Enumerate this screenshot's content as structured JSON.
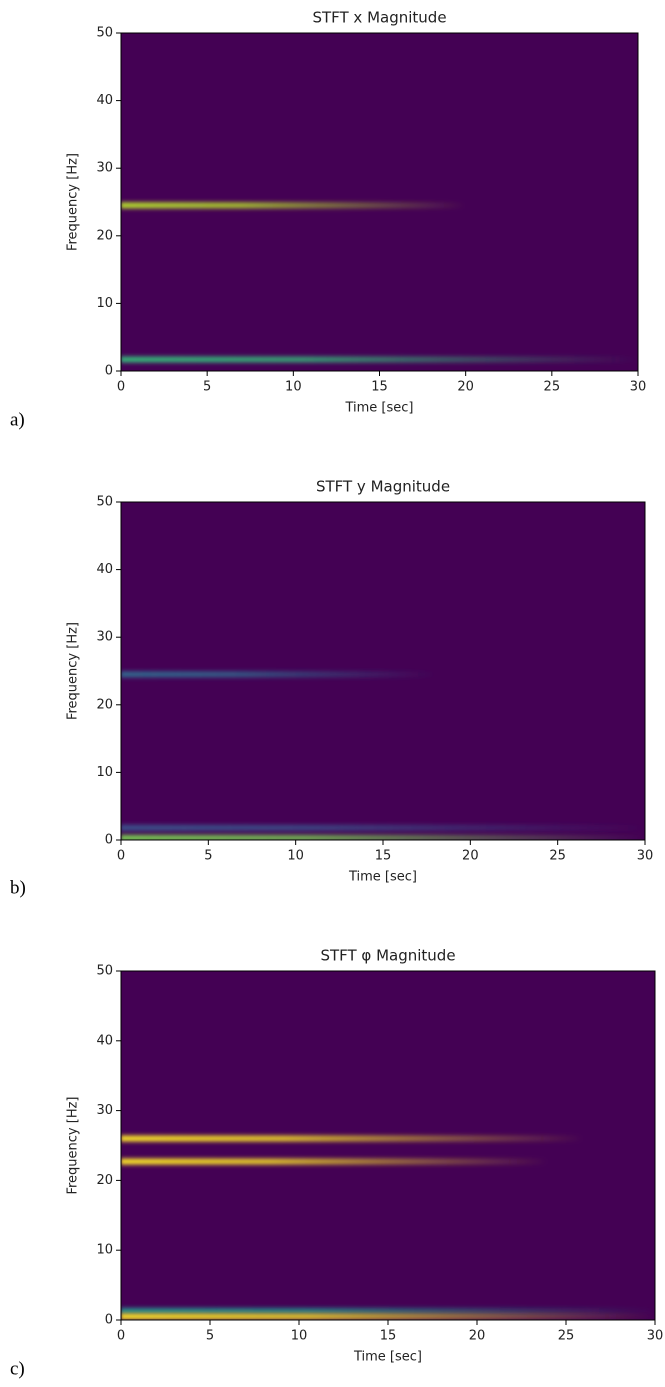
{
  "chart_data": [
    {
      "type": "spectrogram",
      "title": "STFT x Magnitude",
      "label": "a)",
      "xlabel": "Time [sec]",
      "ylabel": "Frequency [Hz]",
      "xlim": [
        0,
        30
      ],
      "ylim": [
        0,
        50
      ],
      "xticks": [
        0,
        5,
        10,
        15,
        20,
        25,
        30
      ],
      "yticks": [
        0,
        10,
        20,
        30,
        40,
        50
      ],
      "background": "#440154",
      "bands": [
        {
          "frequency": 24.5,
          "time": [
            0,
            20
          ],
          "color": "#b5de2b"
        },
        {
          "frequency": 1.7,
          "time": [
            0,
            30
          ],
          "color": "#35b779"
        }
      ]
    },
    {
      "type": "spectrogram",
      "title": "STFT y Magnitude",
      "label": "b)",
      "xlabel": "Time [sec]",
      "ylabel": "Frequency [Hz]",
      "xlim": [
        0,
        30
      ],
      "ylim": [
        0,
        50
      ],
      "xticks": [
        0,
        5,
        10,
        15,
        20,
        25,
        30
      ],
      "yticks": [
        0,
        10,
        20,
        30,
        40,
        50
      ],
      "background": "#440154",
      "bands": [
        {
          "frequency": 24.5,
          "time": [
            0,
            18
          ],
          "color": "#31688e"
        },
        {
          "frequency": 1.8,
          "time": [
            0,
            30
          ],
          "color": "#3b528b"
        },
        {
          "frequency": 0.3,
          "time": [
            0,
            30
          ],
          "color": "#7ad151"
        }
      ]
    },
    {
      "type": "spectrogram",
      "title": "STFT φ Magnitude",
      "label": "c)",
      "xlabel": "Time [sec]",
      "ylabel": "Frequency [Hz]",
      "xlim": [
        0,
        30
      ],
      "ylim": [
        0,
        50
      ],
      "xticks": [
        0,
        5,
        10,
        15,
        20,
        25,
        30
      ],
      "yticks": [
        0,
        10,
        20,
        30,
        40,
        50
      ],
      "background": "#440154",
      "bands": [
        {
          "frequency": 26,
          "time": [
            0,
            26
          ],
          "color": "#fde725"
        },
        {
          "frequency": 22.7,
          "time": [
            0,
            24
          ],
          "color": "#fde725"
        },
        {
          "frequency": 1.3,
          "time": [
            0,
            30
          ],
          "color": "#21918c"
        },
        {
          "frequency": 0.5,
          "time": [
            0,
            30
          ],
          "color": "#fde725"
        }
      ]
    }
  ]
}
